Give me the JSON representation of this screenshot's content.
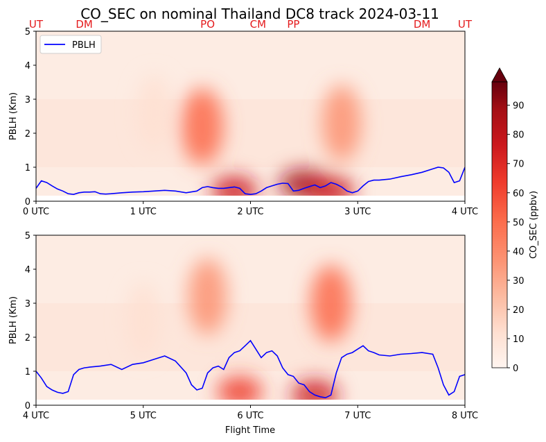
{
  "chart_data": [
    {
      "type": "heatmap",
      "title": "CO_SEC on nominal Thailand DC8 track 2024-03-11",
      "xlabel": "",
      "ylabel": "PBLH (Km)",
      "xlim": [
        0,
        4
      ],
      "ylim": [
        0,
        5
      ],
      "x_ticks": [
        "0 UTC",
        "1 UTC",
        "2 UTC",
        "3 UTC",
        "4 UTC"
      ],
      "y_ticks": [
        "0",
        "1",
        "2",
        "3",
        "4",
        "5"
      ],
      "location_labels": [
        {
          "label": "UT",
          "x": 0.0
        },
        {
          "label": "DM",
          "x": 0.45
        },
        {
          "label": "PO",
          "x": 1.6
        },
        {
          "label": "CM",
          "x": 2.07
        },
        {
          "label": "PP",
          "x": 2.4
        },
        {
          "label": "DM",
          "x": 3.6
        },
        {
          "label": "UT",
          "x": 4.0
        }
      ],
      "legend": {
        "entries": [
          "PBLH"
        ],
        "placement": "upper-left"
      },
      "series": [
        {
          "name": "PBLH",
          "color": "#0000ff",
          "x": [
            0.0,
            0.05,
            0.1,
            0.15,
            0.2,
            0.25,
            0.3,
            0.35,
            0.4,
            0.45,
            0.5,
            0.55,
            0.6,
            0.65,
            0.7,
            0.8,
            0.9,
            1.0,
            1.1,
            1.2,
            1.3,
            1.4,
            1.5,
            1.55,
            1.6,
            1.65,
            1.7,
            1.75,
            1.8,
            1.85,
            1.9,
            1.95,
            2.0,
            2.05,
            2.1,
            2.15,
            2.2,
            2.25,
            2.3,
            2.35,
            2.4,
            2.45,
            2.5,
            2.55,
            2.6,
            2.65,
            2.7,
            2.75,
            2.8,
            2.85,
            2.9,
            2.95,
            3.0,
            3.05,
            3.1,
            3.15,
            3.2,
            3.3,
            3.4,
            3.5,
            3.6,
            3.7,
            3.75,
            3.8,
            3.85,
            3.9,
            3.95,
            4.0
          ],
          "y": [
            0.38,
            0.6,
            0.55,
            0.45,
            0.36,
            0.3,
            0.22,
            0.2,
            0.25,
            0.27,
            0.27,
            0.28,
            0.22,
            0.21,
            0.22,
            0.25,
            0.27,
            0.28,
            0.3,
            0.32,
            0.3,
            0.25,
            0.3,
            0.4,
            0.43,
            0.4,
            0.38,
            0.38,
            0.4,
            0.42,
            0.38,
            0.22,
            0.2,
            0.22,
            0.3,
            0.4,
            0.45,
            0.5,
            0.53,
            0.52,
            0.3,
            0.32,
            0.38,
            0.43,
            0.48,
            0.4,
            0.45,
            0.55,
            0.5,
            0.42,
            0.3,
            0.25,
            0.3,
            0.45,
            0.58,
            0.62,
            0.62,
            0.65,
            0.72,
            0.78,
            0.85,
            0.95,
            1.0,
            0.98,
            0.85,
            0.55,
            0.6,
            1.0
          ]
        }
      ],
      "heat_hotspots": [
        {
          "x": 1.55,
          "y": 2.2,
          "value": 55
        },
        {
          "x": 1.85,
          "y": 0.3,
          "value": 75
        },
        {
          "x": 2.5,
          "y": 0.5,
          "value": 95
        },
        {
          "x": 2.75,
          "y": 0.3,
          "value": 80
        },
        {
          "x": 2.85,
          "y": 2.3,
          "value": 40
        },
        {
          "x": 1.1,
          "y": 2.6,
          "value": 18
        }
      ]
    },
    {
      "type": "heatmap",
      "title": "",
      "xlabel": "Flight Time",
      "ylabel": "PBLH (Km)",
      "xlim": [
        4,
        8
      ],
      "ylim": [
        0,
        5
      ],
      "x_ticks": [
        "4 UTC",
        "5 UTC",
        "6 UTC",
        "7 UTC",
        "8 UTC"
      ],
      "y_ticks": [
        "0",
        "1",
        "2",
        "3",
        "4",
        "5"
      ],
      "series": [
        {
          "name": "PBLH",
          "color": "#0000ff",
          "x": [
            4.0,
            4.05,
            4.1,
            4.15,
            4.2,
            4.25,
            4.3,
            4.35,
            4.4,
            4.45,
            4.5,
            4.6,
            4.7,
            4.8,
            4.9,
            5.0,
            5.1,
            5.2,
            5.3,
            5.4,
            5.45,
            5.5,
            5.55,
            5.6,
            5.65,
            5.7,
            5.75,
            5.8,
            5.85,
            5.9,
            5.95,
            6.0,
            6.05,
            6.1,
            6.15,
            6.2,
            6.25,
            6.3,
            6.35,
            6.4,
            6.45,
            6.5,
            6.55,
            6.6,
            6.65,
            6.7,
            6.75,
            6.8,
            6.85,
            6.9,
            6.95,
            7.0,
            7.05,
            7.1,
            7.15,
            7.2,
            7.3,
            7.4,
            7.5,
            7.6,
            7.7,
            7.75,
            7.8,
            7.85,
            7.9,
            7.95,
            8.0
          ],
          "y": [
            1.0,
            0.8,
            0.55,
            0.45,
            0.38,
            0.35,
            0.4,
            0.9,
            1.05,
            1.1,
            1.12,
            1.15,
            1.2,
            1.05,
            1.2,
            1.25,
            1.35,
            1.45,
            1.3,
            0.95,
            0.6,
            0.45,
            0.5,
            0.95,
            1.1,
            1.15,
            1.05,
            1.4,
            1.55,
            1.6,
            1.75,
            1.9,
            1.65,
            1.4,
            1.55,
            1.6,
            1.45,
            1.1,
            0.9,
            0.85,
            0.65,
            0.6,
            0.4,
            0.3,
            0.25,
            0.22,
            0.3,
            0.95,
            1.4,
            1.5,
            1.55,
            1.65,
            1.75,
            1.6,
            1.55,
            1.48,
            1.45,
            1.5,
            1.52,
            1.55,
            1.5,
            1.1,
            0.6,
            0.3,
            0.4,
            0.85,
            0.9
          ]
        }
      ],
      "heat_hotspots": [
        {
          "x": 5.6,
          "y": 3.2,
          "value": 40
        },
        {
          "x": 5.9,
          "y": 0.4,
          "value": 70
        },
        {
          "x": 6.6,
          "y": 0.3,
          "value": 80
        },
        {
          "x": 6.75,
          "y": 3.0,
          "value": 50
        },
        {
          "x": 5.0,
          "y": 2.5,
          "value": 15
        }
      ]
    }
  ],
  "colorbar": {
    "label": "CO_SEC (ppbv)",
    "ticks": [
      "0",
      "10",
      "20",
      "30",
      "40",
      "50",
      "60",
      "70",
      "80",
      "90"
    ],
    "min": 0,
    "max": 98,
    "extend": "max"
  }
}
